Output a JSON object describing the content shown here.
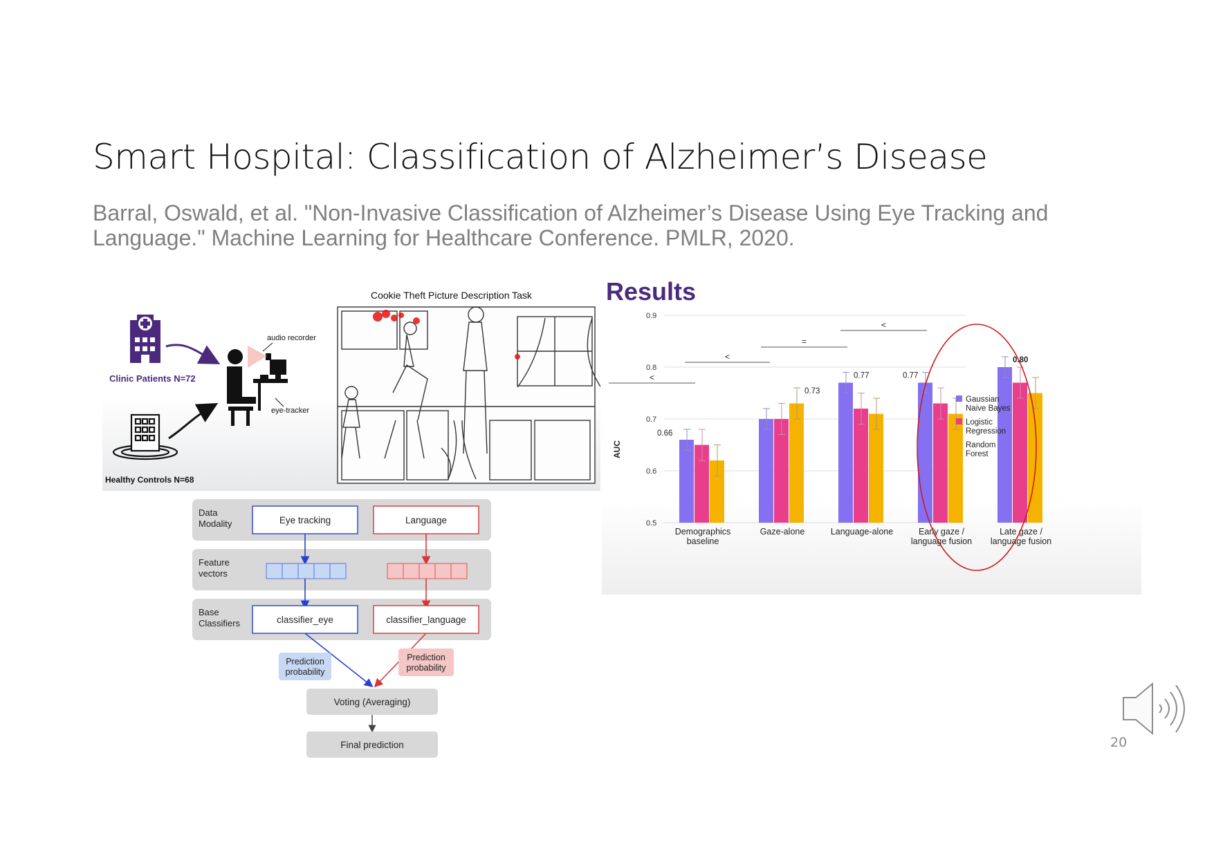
{
  "slide": {
    "title": "Smart Hospital: Classification of Alzheimer’s Disease",
    "citation": "Barral, Oswald, et al. \"Non-Invasive Classification of Alzheimer’s Disease Using Eye Tracking and Language.\" Machine Learning for Healthcare Conference. PMLR, 2020.",
    "slide_number": "20",
    "speaker_icon": "speaker-audio-icon"
  },
  "setup": {
    "clinic_label": "Clinic Patients N=72",
    "controls_label": "Healthy Controls N=68",
    "audio_label": "audio recorder",
    "eye_label": "eye-tracker",
    "task_title": "Cookie Theft Picture Description Task",
    "accent": "#4b2a7e"
  },
  "pipeline": {
    "rows": [
      "Data\nModality",
      "Feature\nvectors",
      "Base\nClassifiers"
    ],
    "eye_modality": "Eye tracking",
    "lang_modality": "Language",
    "eye_classifier": "classifier_eye",
    "lang_classifier": "classifier_language",
    "eye_prob": "Prediction\nprobability",
    "lang_prob": "Prediction\nprobability",
    "voting": "Voting (Averaging)",
    "final": "Final prediction",
    "eye_color": "#2840d0",
    "lang_color": "#d8353a"
  },
  "chart_data": {
    "type": "bar",
    "title": "Results",
    "ylabel": "AUC",
    "xlabel": "",
    "ylim": [
      0.5,
      0.9
    ],
    "yticks": [
      "0.9",
      "0.8",
      "0.7",
      "0.6",
      "0.5"
    ],
    "grid": true,
    "legend_position": "right",
    "categories": [
      "Demographics\nbaseline",
      "Gaze-alone",
      "Language-alone",
      "Early gaze /\nlanguage fusion",
      "Late gaze /\nlanguage fusion"
    ],
    "series": [
      {
        "name": "Gaussian\nNaive Bayes",
        "color": "#8470f0",
        "values": [
          0.66,
          0.7,
          0.77,
          0.77,
          0.8
        ],
        "errors": [
          0.02,
          0.02,
          0.02,
          0.02,
          0.02
        ]
      },
      {
        "name": "Logistic\nRegression",
        "color": "#e83e8c",
        "values": [
          0.65,
          0.7,
          0.72,
          0.73,
          0.77
        ],
        "errors": [
          0.03,
          0.03,
          0.03,
          0.03,
          0.03
        ]
      },
      {
        "name": "Random\nForest",
        "color": "#f5b300",
        "values": [
          0.62,
          0.73,
          0.71,
          0.71,
          0.75
        ],
        "errors": [
          0.03,
          0.03,
          0.03,
          0.03,
          0.03
        ]
      }
    ],
    "data_labels": [
      "0.66",
      "0.73",
      "0.77",
      "0.77",
      "0.80"
    ],
    "comparisons": [
      "<",
      "<",
      "=",
      "<"
    ]
  }
}
